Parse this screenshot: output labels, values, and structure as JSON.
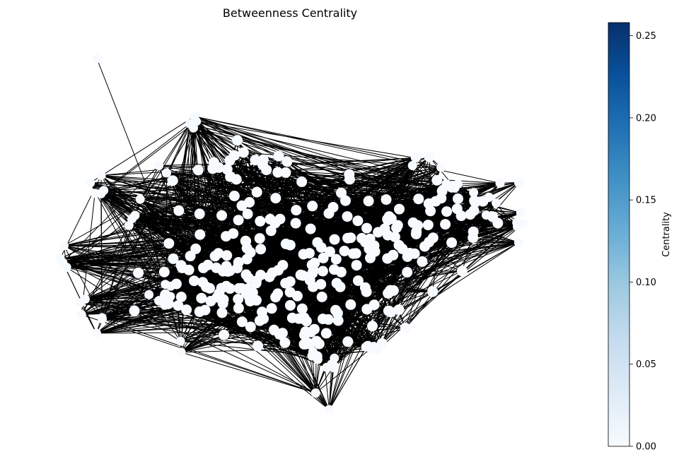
{
  "chart_data": {
    "type": "network",
    "title": "Betweenness Centrality",
    "colorbar": {
      "label": "Centrality",
      "colormap": "Blues",
      "range": [
        0.0,
        0.258
      ],
      "ticks": [
        {
          "value": 0.0,
          "label": "0.00"
        },
        {
          "value": 0.05,
          "label": "0.05"
        },
        {
          "value": 0.1,
          "label": "0.10"
        },
        {
          "value": 0.15,
          "label": "0.15"
        },
        {
          "value": 0.2,
          "label": "0.20"
        },
        {
          "value": 0.25,
          "label": "0.25"
        }
      ],
      "color_stops": [
        "#f7fbff",
        "#deebf7",
        "#c6dbef",
        "#9ecae1",
        "#6baed6",
        "#4292c6",
        "#2171b5",
        "#08519c",
        "#08306b"
      ]
    },
    "node_color": "#f7fbff",
    "edge_color": "#000000",
    "axes_visible": false
  }
}
